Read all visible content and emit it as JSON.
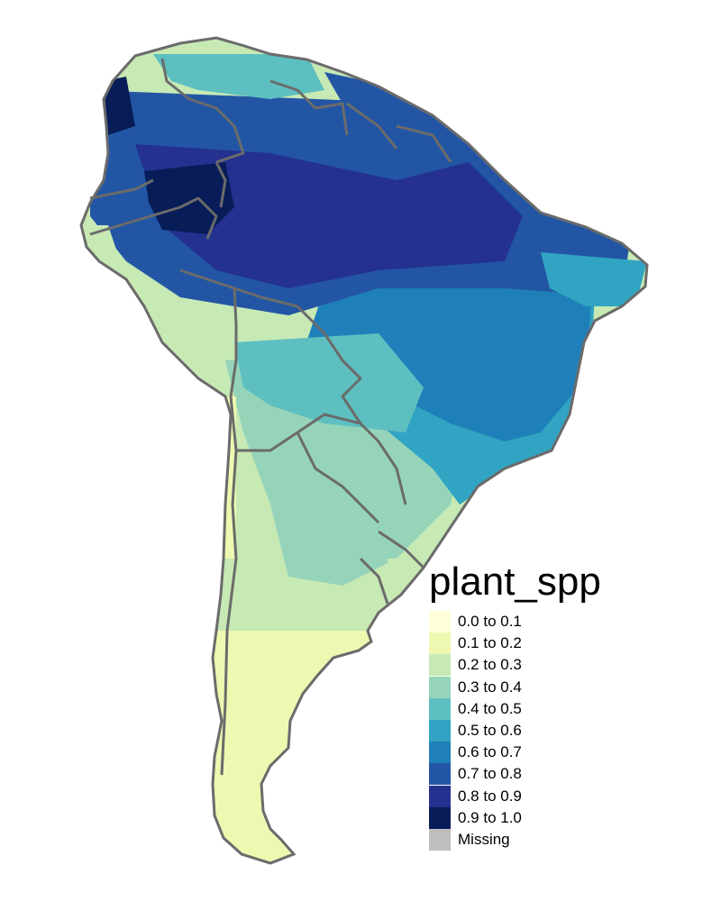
{
  "map": {
    "title": "",
    "palette": {
      "0.0 to 0.1": "#ffffd9",
      "0.1 to 0.2": "#edf8b1",
      "0.2 to 0.3": "#c7e9b4",
      "0.3 to 0.4": "#95d4b9",
      "0.4 to 0.5": "#5dbfc0",
      "0.5 to 0.6": "#30a4c2",
      "0.6 to 0.7": "#1f80b9",
      "0.7 to 0.8": "#2256a5",
      "0.8 to 0.9": "#24318f",
      "0.9 to 1.0": "#081d58",
      "Missing": "#bebebe"
    },
    "border_color": "#6b6b6b"
  },
  "legend": {
    "title": "plant_spp",
    "items": [
      {
        "label": "0.0 to 0.1",
        "color": "#ffffd9"
      },
      {
        "label": "0.1 to 0.2",
        "color": "#edf8b1"
      },
      {
        "label": "0.2 to 0.3",
        "color": "#c7e9b4"
      },
      {
        "label": "0.3 to 0.4",
        "color": "#95d4b9"
      },
      {
        "label": "0.4 to 0.5",
        "color": "#5dbfc0"
      },
      {
        "label": "0.5 to 0.6",
        "color": "#30a4c2"
      },
      {
        "label": "0.6 to 0.7",
        "color": "#1f80b9"
      },
      {
        "label": "0.7 to 0.8",
        "color": "#2256a5"
      },
      {
        "label": "0.8 to 0.9",
        "color": "#24318f"
      },
      {
        "label": "0.9 to 1.0",
        "color": "#081d58"
      },
      {
        "label": "Missing",
        "color": "#bebebe"
      }
    ]
  }
}
